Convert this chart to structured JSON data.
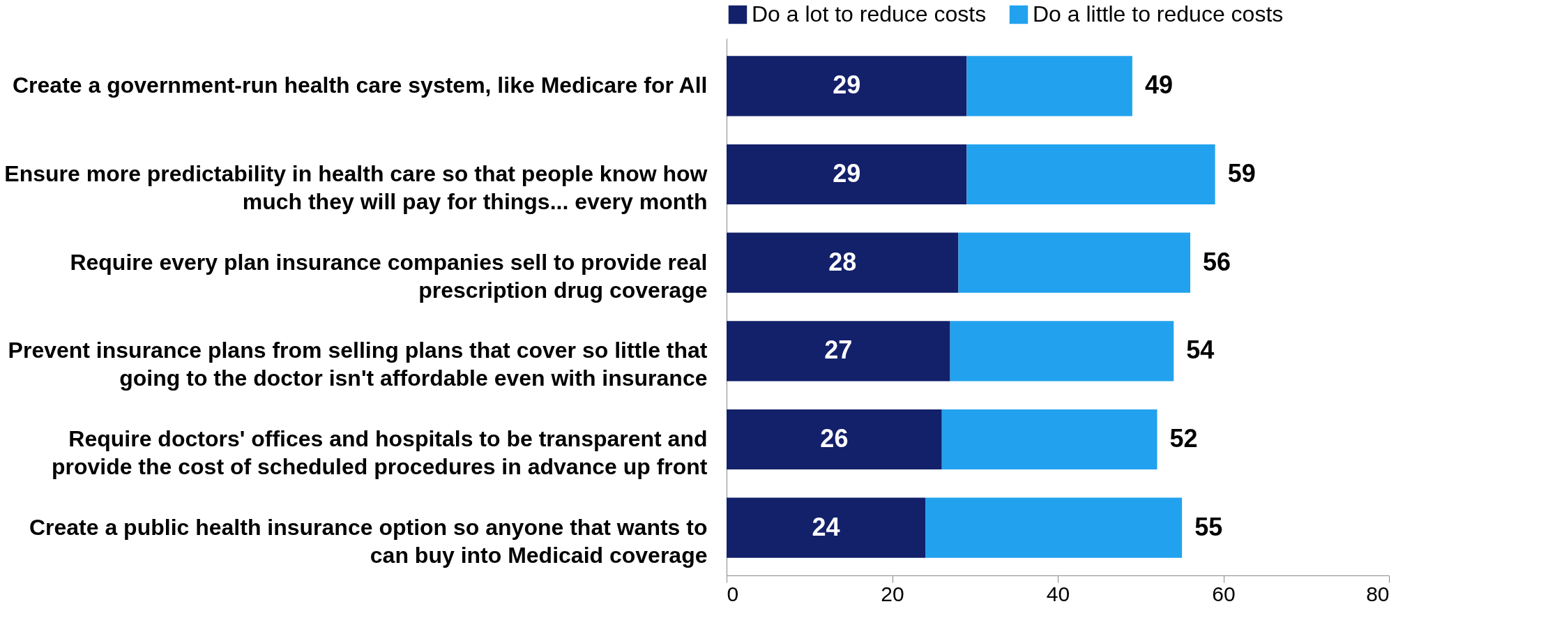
{
  "chart_data": {
    "type": "bar",
    "orientation": "horizontal",
    "stacked": true,
    "categories": [
      "Create a government-run health care system, like Medicare for All",
      "Ensure more predictability in health care so that people know how\nmuch they will pay for things... every month",
      "Require every plan insurance companies sell to provide real\nprescription drug coverage",
      "Prevent insurance plans from selling plans that cover so little that\ngoing to the doctor isn't affordable even with insurance",
      "Require doctors' offices and hospitals to be transparent and\nprovide the cost of scheduled procedures in advance up front",
      "Create a public health insurance option so anyone that wants to\ncan buy into Medicaid coverage"
    ],
    "series": [
      {
        "name": "Do a lot to reduce costs",
        "color": "#13206a",
        "values": [
          29,
          29,
          28,
          27,
          26,
          24
        ],
        "value_labels": [
          "29",
          "29",
          "28",
          "27",
          "26",
          "24"
        ]
      },
      {
        "name": "Do a little to reduce costs",
        "color": "#22a2ee",
        "values": [
          20,
          30,
          28,
          27,
          26,
          31
        ]
      }
    ],
    "totals": [
      "49",
      "59",
      "56",
      "54",
      "52",
      "55"
    ],
    "xlim": [
      0,
      80
    ],
    "xticks": [
      0,
      20,
      40,
      60,
      80
    ],
    "grid": false,
    "legend": "top"
  }
}
